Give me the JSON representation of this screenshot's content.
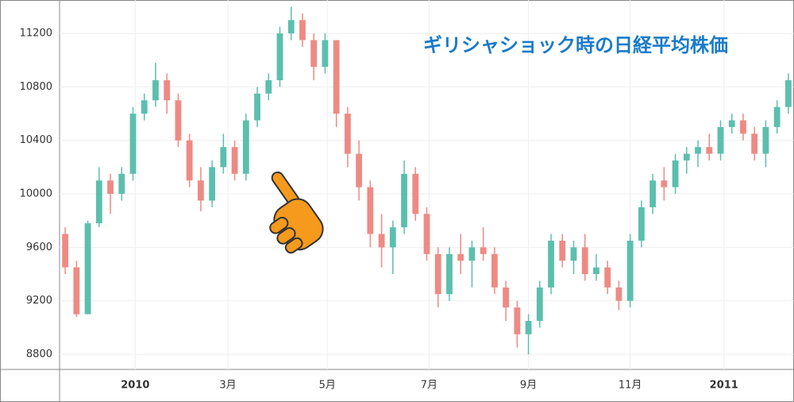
{
  "chart_data": {
    "type": "candlestick",
    "title": "ギリシャショック時の日経平均株価",
    "up_color": "#5cbfae",
    "down_color": "#ee8a84",
    "grid": true,
    "xlim": [
      -0.5,
      64.5
    ],
    "ylim": [
      8687,
      11450
    ],
    "yticks": [
      8800,
      9200,
      9600,
      10000,
      10400,
      10800,
      11200
    ],
    "xticks": [
      {
        "value": 6.2,
        "label": "2010"
      },
      {
        "value": 14.4,
        "label": "3月"
      },
      {
        "value": 23.2,
        "label": "5月"
      },
      {
        "value": 32.2,
        "label": "7月"
      },
      {
        "value": 41.0,
        "label": "9月"
      },
      {
        "value": 50.0,
        "label": "11月"
      },
      {
        "value": 58.3,
        "label": "2011"
      }
    ],
    "series": [
      {
        "open": [
          9700,
          9450,
          9100,
          9780,
          10100,
          10000,
          10150,
          10600,
          10700,
          10850,
          10700,
          10400,
          10100,
          9950,
          10200,
          10350,
          10150,
          10550,
          10750,
          10850,
          11200,
          11300,
          11150,
          10950,
          11150,
          10600,
          10300,
          10050,
          9700,
          9600,
          9750,
          10150,
          9850,
          9550,
          9250,
          9550,
          9500,
          9600,
          9550,
          9300,
          9150,
          8950,
          9050,
          9300,
          9650,
          9500,
          9600,
          9400,
          9450,
          9300,
          9200,
          9650,
          9900,
          10100,
          10050,
          10250,
          10300,
          10350,
          10300,
          10500,
          10550,
          10450,
          10300,
          10500,
          10650
        ],
        "high": [
          9750,
          9500,
          9800,
          10200,
          10150,
          10200,
          10650,
          10750,
          10980,
          10900,
          10750,
          10450,
          10200,
          10250,
          10450,
          10400,
          10600,
          10800,
          10900,
          11250,
          11400,
          11350,
          11200,
          11200,
          11150,
          10650,
          10400,
          10100,
          9850,
          9800,
          10250,
          10200,
          9900,
          9600,
          9600,
          9700,
          9650,
          9750,
          9600,
          9350,
          9200,
          9100,
          9350,
          9700,
          9700,
          9650,
          9700,
          9550,
          9500,
          9350,
          9700,
          9950,
          10150,
          10200,
          10300,
          10350,
          10400,
          10450,
          10550,
          10600,
          10600,
          10500,
          10550,
          10700,
          10900
        ],
        "low": [
          9400,
          9080,
          9100,
          9750,
          9850,
          9950,
          10100,
          10550,
          10650,
          10600,
          10350,
          10050,
          9870,
          9900,
          10150,
          10100,
          10100,
          10500,
          10700,
          10800,
          11150,
          11100,
          10850,
          10900,
          10500,
          10200,
          9950,
          9600,
          9450,
          9400,
          9700,
          9800,
          9500,
          9150,
          9200,
          9400,
          9300,
          9500,
          9250,
          9050,
          8850,
          8800,
          9000,
          9250,
          9450,
          9400,
          9350,
          9350,
          9250,
          9130,
          9150,
          9600,
          9850,
          9950,
          10000,
          10150,
          10200,
          10250,
          10250,
          10450,
          10400,
          10250,
          10200,
          10450,
          10600
        ],
        "close": [
          9450,
          9100,
          9780,
          10100,
          10000,
          10150,
          10600,
          10700,
          10850,
          10700,
          10400,
          10100,
          9950,
          10200,
          10350,
          10150,
          10550,
          10750,
          10850,
          11200,
          11300,
          11150,
          10950,
          11150,
          10600,
          10300,
          10050,
          9700,
          9600,
          9750,
          10150,
          9850,
          9550,
          9250,
          9550,
          9500,
          9600,
          9550,
          9300,
          9150,
          8950,
          9050,
          9300,
          9650,
          9500,
          9600,
          9400,
          9450,
          9300,
          9200,
          9650,
          9900,
          10100,
          10050,
          10250,
          10300,
          10350,
          10300,
          10500,
          10550,
          10450,
          10300,
          10500,
          10650,
          10850
        ]
      }
    ]
  }
}
